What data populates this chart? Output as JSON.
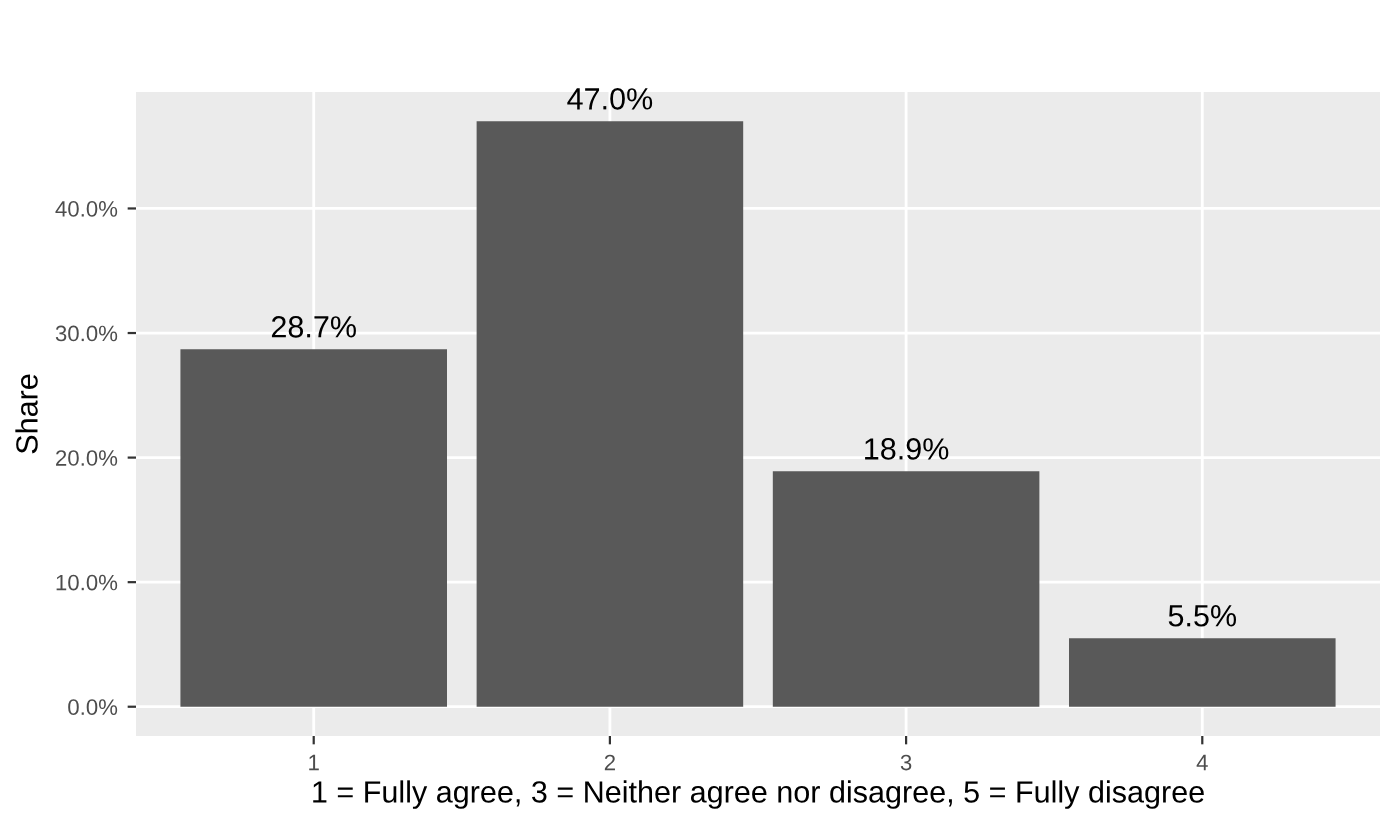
{
  "chart_data": {
    "type": "bar",
    "xlabel": "1 = Fully agree, 3 = Neither agree nor disagree, 5 = Fully disagree",
    "ylabel": "Share",
    "categories": [
      "1",
      "2",
      "3",
      "4"
    ],
    "values": [
      28.7,
      47.0,
      18.9,
      5.5
    ],
    "value_labels": [
      "28.7%",
      "47.0%",
      "18.9%",
      "5.5%"
    ],
    "color": "#595959",
    "ylim": [
      -2.35,
      49.35
    ],
    "yticks": [
      {
        "value": 0,
        "label": "0.0%"
      },
      {
        "value": 10,
        "label": "10.0%"
      },
      {
        "value": 20,
        "label": "20.0%"
      },
      {
        "value": 30,
        "label": "30.0%"
      },
      {
        "value": 40,
        "label": "40.0%"
      }
    ],
    "grid": true,
    "legend": false
  }
}
